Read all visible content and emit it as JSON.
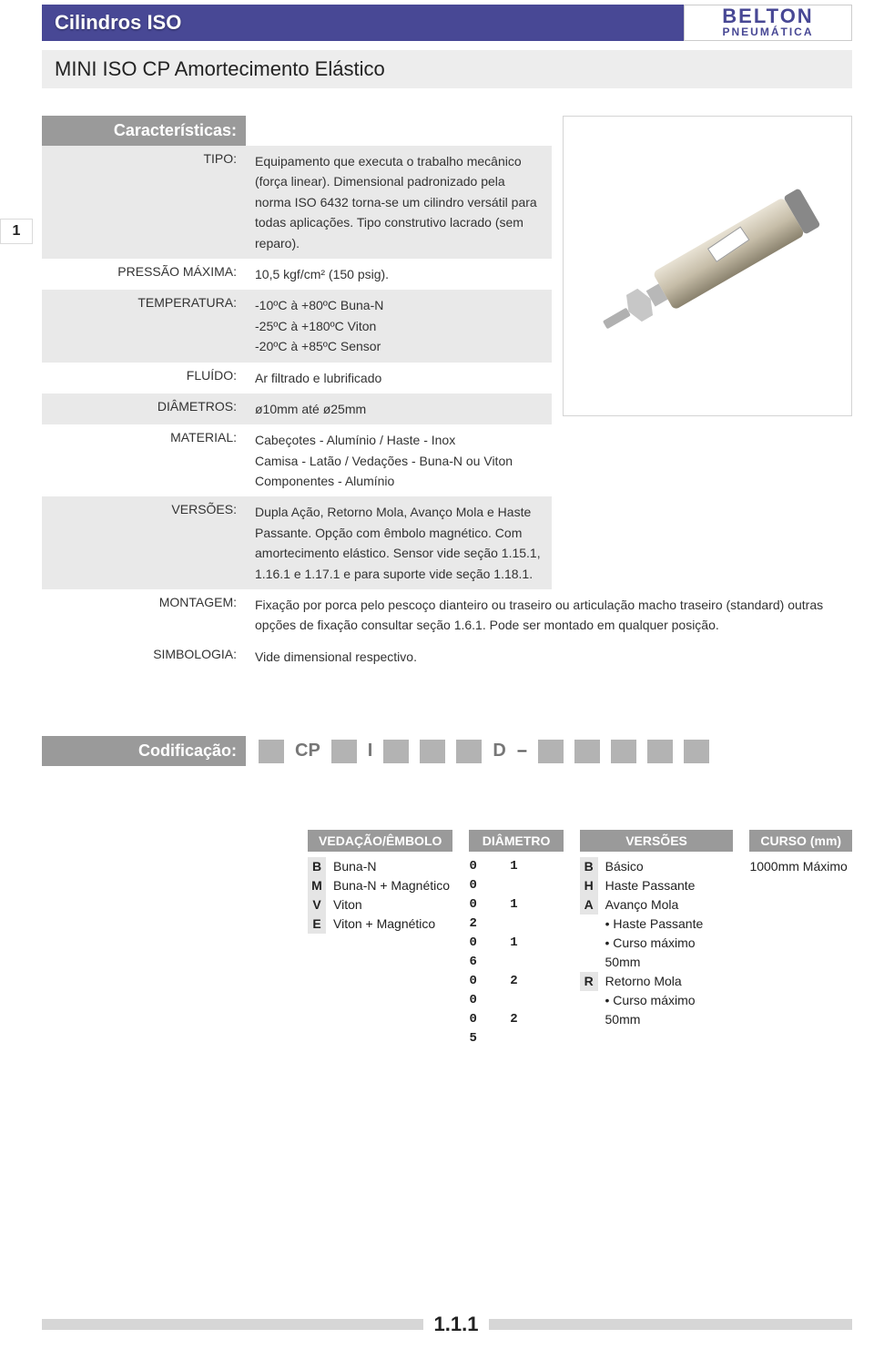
{
  "header": {
    "title": "Cilindros ISO",
    "logo_line1": "BELTON",
    "logo_line2": "PNEUMÁTICA"
  },
  "subtitle": "MINI ISO CP Amortecimento Elástico",
  "side_tab": "1",
  "sections": {
    "charac_title": "Características:",
    "codif_title": "Codificação:"
  },
  "specs": [
    {
      "label": "TIPO:",
      "value": "Equipamento que executa o trabalho mecânico (força linear). Dimensional padronizado pela norma ISO 6432 torna-se um cilindro versátil para todas aplicações. Tipo construtivo lacrado (sem reparo).",
      "shade": true
    },
    {
      "label": "PRESSÃO MÁXIMA:",
      "value": "10,5 kgf/cm² (150 psig).",
      "shade": false
    },
    {
      "label": "TEMPERATURA:",
      "value": "-10ºC à +80ºC Buna-N\n-25ºC à +180ºC Viton\n-20ºC à +85ºC Sensor",
      "shade": true
    },
    {
      "label": "FLUÍDO:",
      "value": "Ar filtrado e lubrificado",
      "shade": false
    },
    {
      "label": "DIÂMETROS:",
      "value": "ø10mm até ø25mm",
      "shade": true
    },
    {
      "label": "MATERIAL:",
      "value": "Cabeçotes - Alumínio / Haste - Inox\nCamisa - Latão / Vedações - Buna-N ou Viton\nComponentes - Alumínio",
      "shade": false
    },
    {
      "label": "VERSÕES:",
      "value": "Dupla Ação, Retorno Mola, Avanço Mola e Haste Passante. Opção com êmbolo magnético. Com amortecimento elástico. Sensor vide seção 1.15.1, 1.16.1 e 1.17.1 e para suporte vide seção 1.18.1.",
      "shade": true
    }
  ],
  "specs_wide": [
    {
      "label": "MONTAGEM:",
      "value": "Fixação por porca pelo pescoço dianteiro ou traseiro ou articulação macho traseiro (standard) outras opções de fixação consultar seção 1.6.1. Pode ser montado em qualquer posição."
    },
    {
      "label": "SIMBOLOGIA:",
      "value": "Vide dimensional respectivo."
    }
  ],
  "codif_boxes": {
    "p1": "CP",
    "p2": "I",
    "p3": "D",
    "dash": "–"
  },
  "legend": {
    "seal": {
      "head": "VEDAÇÃO/ÊMBOLO",
      "rows": [
        {
          "c": "B",
          "t": "Buna-N"
        },
        {
          "c": "M",
          "t": "Buna-N + Magnético"
        },
        {
          "c": "V",
          "t": "Viton"
        },
        {
          "c": "E",
          "t": "Viton + Magnético"
        }
      ]
    },
    "diam": {
      "head": "DIÂMETRO",
      "rows": [
        "0 1 0",
        "0 1 2",
        "0 1 6",
        "0 2 0",
        "0 2 5"
      ]
    },
    "vers": {
      "head": "VERSÕES",
      "rows": [
        {
          "c": "B",
          "t": "Básico"
        },
        {
          "c": "H",
          "t": "Haste Passante"
        },
        {
          "c": "A",
          "t": "Avanço Mola"
        },
        {
          "c": "",
          "t": "• Haste Passante"
        },
        {
          "c": "",
          "t": "• Curso máximo 50mm"
        },
        {
          "c": "R",
          "t": "Retorno Mola"
        },
        {
          "c": "",
          "t": "• Curso máximo 50mm"
        }
      ]
    },
    "curso": {
      "head": "CURSO (mm)",
      "text": "1000mm Máximo"
    }
  },
  "page_number": "1.1.1"
}
